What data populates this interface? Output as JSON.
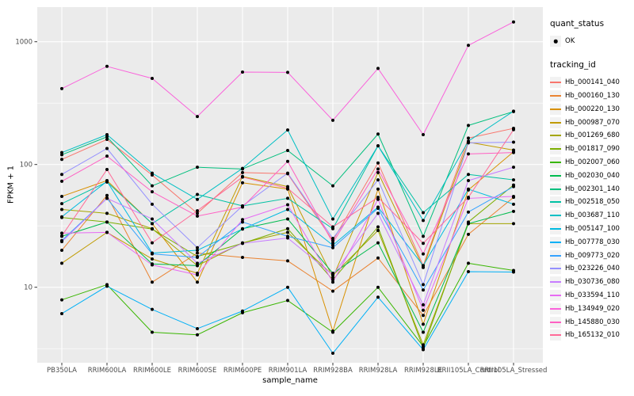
{
  "axis": {
    "x_title": "sample_name",
    "y_title": "FPKM + 1"
  },
  "legend": {
    "quant_status": {
      "title": "quant_status",
      "items": [
        {
          "label": "OK",
          "marker": "point",
          "marker_color": "#000000"
        }
      ]
    },
    "tracking_id_title": "tracking_id"
  },
  "chart_data": {
    "type": "line",
    "title": "",
    "xlabel": "sample_name",
    "ylabel": "FPKM + 1",
    "y_scale": "log10",
    "y_ticks": [
      10,
      100,
      1000
    ],
    "y_minor_ticks": [
      3.1623,
      31.623,
      316.23
    ],
    "ylim_log": [
      2.4,
      1900
    ],
    "grid": "white lines on gray panel",
    "panel_bg": "#EBEBEB",
    "grid_color": "#FFFFFF",
    "tick_label_color": "#4d4d4d",
    "point_color": "#000000",
    "legend_position": "right",
    "categories": [
      "PB350LA",
      "RRIM600LA",
      "RRIM600LE",
      "RRIM600SE",
      "RRIM600PE",
      "RRIM901LA",
      "RRIM928BA",
      "RRIM928LA",
      "RRIM928LE",
      "RRII105LA_Control",
      "RRII105LA_Stressed"
    ],
    "series": [
      {
        "name": "Hb_000141_040",
        "color": "#F8766D",
        "values": [
          110,
          160,
          82,
          40,
          86,
          84,
          24,
          103,
          15,
          164,
          197
        ]
      },
      {
        "name": "Hb_000160_130",
        "color": "#EA8331",
        "values": [
          20,
          56,
          11,
          19,
          17.5,
          16.4,
          9.3,
          17.3,
          5.9,
          27,
          54
        ]
      },
      {
        "name": "Hb_000220_130",
        "color": "#D89000",
        "values": [
          55,
          74,
          33,
          11,
          71,
          63,
          4.4,
          63,
          5,
          62,
          127
        ]
      },
      {
        "name": "Hb_000987_070",
        "color": "#C09B00",
        "values": [
          15.7,
          28,
          17,
          13,
          80,
          66,
          12,
          86,
          14.5,
          152,
          131
        ]
      },
      {
        "name": "Hb_001269_680",
        "color": "#A3A500",
        "values": [
          43,
          40,
          30,
          15,
          23,
          28,
          12.5,
          29,
          3.4,
          33,
          33
        ]
      },
      {
        "name": "Hb_001817_090",
        "color": "#7CAE00",
        "values": [
          37,
          34,
          29.8,
          17.8,
          22.8,
          30,
          11.5,
          31,
          3.2,
          34,
          68
        ]
      },
      {
        "name": "Hb_002007_060",
        "color": "#39B600",
        "values": [
          7.9,
          10.5,
          4.3,
          4.1,
          6.2,
          7.8,
          4.3,
          10,
          3.3,
          15.7,
          13.7
        ]
      },
      {
        "name": "Hb_002030_040",
        "color": "#00BB4E",
        "values": [
          26,
          34,
          15.5,
          15,
          30,
          36,
          13,
          23,
          4.3,
          33,
          41.5
        ]
      },
      {
        "name": "Hb_002301_140",
        "color": "#00BF7D",
        "values": [
          120,
          168,
          67,
          95,
          92,
          130,
          67,
          177,
          26,
          208,
          270
        ]
      },
      {
        "name": "Hb_002518_050",
        "color": "#00C1A3",
        "values": [
          48,
          72,
          33,
          57,
          46,
          53,
          30,
          142,
          40.5,
          83,
          75
        ]
      },
      {
        "name": "Hb_003687_110",
        "color": "#00BFC4",
        "values": [
          125,
          175,
          85,
          52,
          93,
          191,
          36,
          142,
          35,
          155,
          272
        ]
      },
      {
        "name": "Hb_005147_100",
        "color": "#00BAE0",
        "values": [
          37.5,
          73,
          19,
          20,
          29.8,
          43,
          22,
          45,
          15,
          63,
          47.5
        ]
      },
      {
        "name": "Hb_007778_030",
        "color": "#00B0F6",
        "values": [
          6.1,
          10.2,
          6.6,
          4.6,
          6.4,
          10,
          2.9,
          8.3,
          3.1,
          13.4,
          13.3
        ]
      },
      {
        "name": "Hb_009773_020",
        "color": "#35A2FF",
        "values": [
          24,
          53,
          18.7,
          17.5,
          34,
          26,
          21,
          44,
          9.5,
          41,
          66
        ]
      },
      {
        "name": "Hb_023226_040",
        "color": "#9590FF",
        "values": [
          83,
          135,
          47.5,
          21,
          46,
          85,
          25,
          75,
          10.5,
          150,
          152
        ]
      },
      {
        "name": "Hb_030736_080",
        "color": "#C77CFF",
        "values": [
          23.5,
          53,
          36,
          15.7,
          22.8,
          25.2,
          12.6,
          40,
          7.2,
          74,
          95
        ]
      },
      {
        "name": "Hb_033594_110",
        "color": "#E76BF3",
        "values": [
          27.6,
          28,
          15.2,
          12.6,
          35.6,
          47,
          11,
          52,
          6.5,
          53,
          55
        ]
      },
      {
        "name": "Hb_134949_020",
        "color": "#FA62DB",
        "values": [
          415,
          630,
          503,
          246,
          566,
          563,
          229,
          606,
          175,
          934,
          1450
        ]
      },
      {
        "name": "Hb_145880_030",
        "color": "#FF61C3",
        "values": [
          73,
          117,
          60,
          38,
          45,
          106,
          23,
          92,
          18.7,
          122,
          125
        ]
      },
      {
        "name": "Hb_165132_010",
        "color": "#FF6A98",
        "values": [
          26.2,
          91,
          23,
          42,
          79,
          64,
          31,
          54,
          22.8,
          54,
          192
        ]
      }
    ]
  }
}
